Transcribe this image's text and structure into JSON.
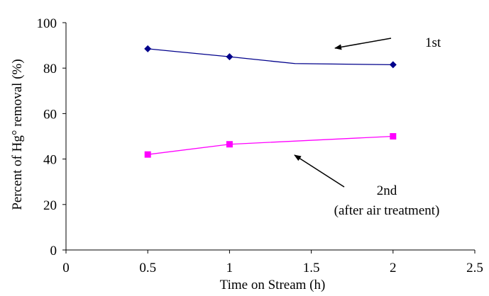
{
  "chart_data": {
    "type": "line",
    "title": "",
    "xlabel": "Time on Stream (h)",
    "ylabel": "Percent of Hg° removal (%)",
    "xlim": [
      0,
      2.5
    ],
    "ylim": [
      0,
      100
    ],
    "x_ticks": [
      "0",
      "0.5",
      "1",
      "1.5",
      "2",
      "2.5"
    ],
    "y_ticks": [
      "0",
      "20",
      "40",
      "60",
      "80",
      "100"
    ],
    "grid": false,
    "legend": "none",
    "series": [
      {
        "name": "1st",
        "color": "#00008b",
        "marker": "diamond",
        "x": [
          0.5,
          1,
          1.4,
          2
        ],
        "y": [
          88.5,
          85,
          82,
          81.5
        ],
        "marker_points": [
          0,
          1,
          3
        ]
      },
      {
        "name": "2nd (after air treatment)",
        "color": "#ff00ff",
        "marker": "square",
        "x": [
          0.5,
          1,
          2
        ],
        "y": [
          42,
          46.5,
          50
        ],
        "marker_points": [
          0,
          1,
          2
        ]
      }
    ],
    "annotations": [
      {
        "text": "1st",
        "series": 0
      },
      {
        "text": "2nd",
        "series": 1
      },
      {
        "text": "(after air treatment)",
        "series": 1
      }
    ]
  }
}
